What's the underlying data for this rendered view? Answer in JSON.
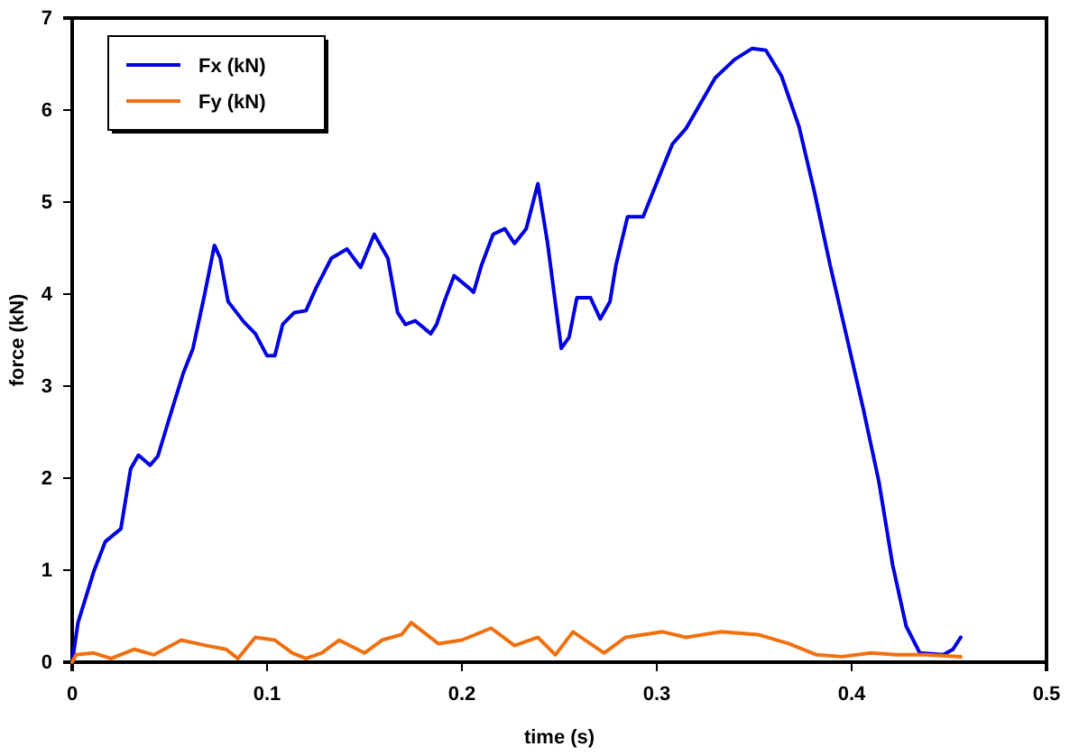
{
  "chart_data": {
    "type": "line",
    "xlabel": "time (s)",
    "ylabel": "force (kN)",
    "xlim": [
      0,
      0.5
    ],
    "xticks": [
      0,
      0.1,
      0.2,
      0.3,
      0.4,
      0.5
    ],
    "ylim": [
      0,
      7
    ],
    "yticks": [
      0,
      1,
      2,
      3,
      4,
      5,
      6,
      7
    ],
    "grid": false,
    "legend": "top left",
    "marker": "none",
    "line_style": "solid",
    "series": [
      {
        "name": "Fx (kN)",
        "color": "#0000e0",
        "x": [
          0,
          0.003,
          0.011,
          0.017,
          0.025,
          0.03,
          0.034,
          0.04,
          0.044,
          0.051,
          0.057,
          0.062,
          0.068,
          0.073,
          0.076,
          0.08,
          0.088,
          0.094,
          0.1,
          0.104,
          0.108,
          0.114,
          0.12,
          0.125,
          0.133,
          0.141,
          0.148,
          0.155,
          0.162,
          0.167,
          0.171,
          0.176,
          0.184,
          0.187,
          0.191,
          0.196,
          0.204,
          0.206,
          0.21,
          0.216,
          0.222,
          0.227,
          0.233,
          0.239,
          0.244,
          0.251,
          0.255,
          0.259,
          0.266,
          0.271,
          0.276,
          0.279,
          0.285,
          0.293,
          0.303,
          0.308,
          0.315,
          0.321,
          0.33,
          0.34,
          0.349,
          0.356,
          0.364,
          0.373,
          0.381,
          0.389,
          0.396,
          0.406,
          0.414,
          0.421,
          0.428,
          0.435,
          0.447,
          0.452,
          0.456
        ],
        "values": [
          0,
          0.43,
          0.98,
          1.31,
          1.45,
          2.1,
          2.25,
          2.14,
          2.24,
          2.73,
          3.14,
          3.41,
          4.0,
          4.53,
          4.39,
          3.92,
          3.7,
          3.57,
          3.33,
          3.33,
          3.67,
          3.8,
          3.82,
          4.06,
          4.39,
          4.49,
          4.29,
          4.65,
          4.39,
          3.8,
          3.67,
          3.71,
          3.57,
          3.67,
          3.92,
          4.2,
          4.06,
          4.02,
          4.31,
          4.65,
          4.71,
          4.55,
          4.71,
          5.2,
          4.55,
          3.41,
          3.53,
          3.96,
          3.96,
          3.73,
          3.92,
          4.31,
          4.84,
          4.84,
          5.37,
          5.63,
          5.8,
          6.02,
          6.35,
          6.55,
          6.67,
          6.65,
          6.37,
          5.82,
          5.1,
          4.31,
          3.67,
          2.75,
          1.96,
          1.06,
          0.39,
          0.1,
          0.08,
          0.14,
          0.27
        ]
      },
      {
        "name": "Fy (kN)",
        "color": "#f07010",
        "x": [
          0,
          0.002,
          0.011,
          0.02,
          0.032,
          0.042,
          0.056,
          0.069,
          0.079,
          0.085,
          0.094,
          0.104,
          0.113,
          0.12,
          0.128,
          0.137,
          0.15,
          0.159,
          0.169,
          0.174,
          0.188,
          0.2,
          0.215,
          0.227,
          0.239,
          0.248,
          0.257,
          0.273,
          0.284,
          0.303,
          0.315,
          0.333,
          0.352,
          0.368,
          0.382,
          0.395,
          0.41,
          0.423,
          0.438,
          0.456
        ],
        "values": [
          0,
          0.08,
          0.1,
          0.04,
          0.14,
          0.08,
          0.24,
          0.18,
          0.14,
          0.04,
          0.27,
          0.24,
          0.1,
          0.04,
          0.1,
          0.24,
          0.1,
          0.24,
          0.3,
          0.43,
          0.2,
          0.24,
          0.37,
          0.18,
          0.27,
          0.08,
          0.33,
          0.1,
          0.27,
          0.33,
          0.27,
          0.33,
          0.3,
          0.2,
          0.08,
          0.06,
          0.1,
          0.08,
          0.08,
          0.06
        ]
      }
    ]
  }
}
